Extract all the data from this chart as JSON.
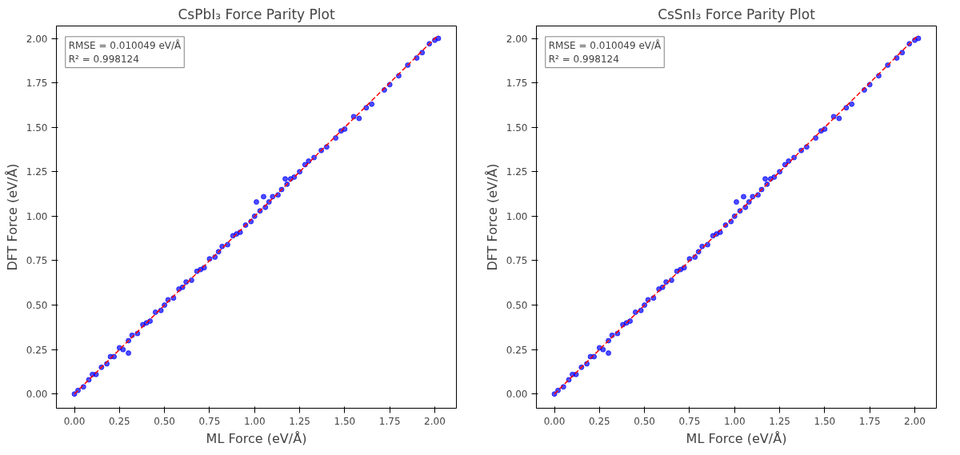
{
  "chart_data": [
    {
      "type": "scatter",
      "title": "CsPbI₃ Force Parity Plot",
      "xlabel": "ML Force (eV/Å)",
      "ylabel": "DFT Force (eV/Å)",
      "xlim": [
        -0.1,
        2.12
      ],
      "ylim": [
        -0.08,
        2.07
      ],
      "xticks": [
        {
          "value": 0,
          "label": "0.00"
        },
        0.25,
        {
          "value": 0.5,
          "label": "0.50"
        },
        0.75,
        {
          "value": 1,
          "label": "1.00"
        },
        1.25,
        {
          "value": 1.5,
          "label": "1.50"
        },
        1.75,
        {
          "value": 2,
          "label": "2.00"
        }
      ],
      "yticks": [
        {
          "value": 0,
          "label": "0.00"
        },
        0.25,
        {
          "value": 0.5,
          "label": "0.50"
        },
        0.75,
        {
          "value": 1,
          "label": "1.00"
        },
        1.25,
        {
          "value": 1.5,
          "label": "1.50"
        },
        1.75,
        {
          "value": 2,
          "label": "2.00"
        }
      ],
      "grid": false,
      "marker": "circle",
      "annotations": [
        "RMSE = 0.010049 eV/Å\nR² = 0.998124"
      ],
      "series": [
        {
          "color": "#0000ff",
          "x": [
            0.0,
            0.02,
            0.05,
            0.08,
            0.1,
            0.12,
            0.15,
            0.18,
            0.2,
            0.22,
            0.25,
            0.27,
            0.3,
            0.3,
            0.32,
            0.35,
            0.38,
            0.4,
            0.42,
            0.45,
            0.48,
            0.5,
            0.52,
            0.55,
            0.58,
            0.6,
            0.62,
            0.65,
            0.68,
            0.7,
            0.72,
            0.75,
            0.78,
            0.8,
            0.82,
            0.85,
            0.88,
            0.9,
            0.92,
            0.95,
            0.98,
            1.0,
            1.01,
            1.03,
            1.05,
            1.06,
            1.08,
            1.1,
            1.13,
            1.15,
            1.17,
            1.18,
            1.2,
            1.22,
            1.25,
            1.28,
            1.3,
            1.33,
            1.37,
            1.4,
            1.45,
            1.48,
            1.5,
            1.55,
            1.58,
            1.62,
            1.65,
            1.72,
            1.75,
            1.8,
            1.85,
            1.9,
            1.93,
            1.97,
            2.0,
            2.02
          ],
          "values": [
            0.0,
            0.02,
            0.04,
            0.08,
            0.11,
            0.11,
            0.15,
            0.17,
            0.21,
            0.21,
            0.26,
            0.25,
            0.3,
            0.23,
            0.33,
            0.34,
            0.39,
            0.4,
            0.41,
            0.46,
            0.47,
            0.5,
            0.53,
            0.54,
            0.59,
            0.6,
            0.63,
            0.64,
            0.69,
            0.7,
            0.71,
            0.76,
            0.77,
            0.8,
            0.83,
            0.84,
            0.89,
            0.9,
            0.91,
            0.95,
            0.97,
            1.0,
            1.08,
            1.03,
            1.11,
            1.05,
            1.08,
            1.11,
            1.12,
            1.15,
            1.21,
            1.18,
            1.21,
            1.22,
            1.25,
            1.29,
            1.31,
            1.33,
            1.37,
            1.39,
            1.44,
            1.48,
            1.49,
            1.56,
            1.55,
            1.61,
            1.63,
            1.71,
            1.74,
            1.79,
            1.85,
            1.89,
            1.92,
            1.97,
            1.99,
            2.0
          ]
        },
        {
          "type": "line",
          "color": "#ff0000",
          "line_style": "dashed",
          "marker": "none",
          "x": [
            0.0,
            2.02
          ],
          "values": [
            0.0,
            2.02
          ]
        }
      ]
    },
    {
      "type": "scatter",
      "title": "CsSnI₃ Force Parity Plot",
      "xlabel": "ML Force (eV/Å)",
      "ylabel": "DFT Force (eV/Å)",
      "xlim": [
        -0.1,
        2.12
      ],
      "ylim": [
        -0.08,
        2.07
      ],
      "xticks": [
        {
          "value": 0,
          "label": "0.00"
        },
        0.25,
        {
          "value": 0.5,
          "label": "0.50"
        },
        0.75,
        {
          "value": 1,
          "label": "1.00"
        },
        1.25,
        {
          "value": 1.5,
          "label": "1.50"
        },
        1.75,
        {
          "value": 2,
          "label": "2.00"
        }
      ],
      "yticks": [
        {
          "value": 0,
          "label": "0.00"
        },
        0.25,
        {
          "value": 0.5,
          "label": "0.50"
        },
        0.75,
        {
          "value": 1,
          "label": "1.00"
        },
        1.25,
        {
          "value": 1.5,
          "label": "1.50"
        },
        1.75,
        {
          "value": 2,
          "label": "2.00"
        }
      ],
      "grid": false,
      "marker": "circle",
      "annotations": [
        "RMSE = 0.010049 eV/Å\nR² = 0.998124"
      ],
      "series": [
        {
          "color": "#0000ff",
          "x": [
            0.0,
            0.02,
            0.05,
            0.08,
            0.1,
            0.12,
            0.15,
            0.18,
            0.2,
            0.22,
            0.25,
            0.27,
            0.3,
            0.3,
            0.32,
            0.35,
            0.38,
            0.4,
            0.42,
            0.45,
            0.48,
            0.5,
            0.52,
            0.55,
            0.58,
            0.6,
            0.62,
            0.65,
            0.68,
            0.7,
            0.72,
            0.75,
            0.78,
            0.8,
            0.82,
            0.85,
            0.88,
            0.9,
            0.92,
            0.95,
            0.98,
            1.0,
            1.01,
            1.03,
            1.05,
            1.06,
            1.08,
            1.1,
            1.13,
            1.15,
            1.17,
            1.18,
            1.2,
            1.22,
            1.25,
            1.28,
            1.3,
            1.33,
            1.37,
            1.4,
            1.45,
            1.48,
            1.5,
            1.55,
            1.58,
            1.62,
            1.65,
            1.72,
            1.75,
            1.8,
            1.85,
            1.9,
            1.93,
            1.97,
            2.0,
            2.02
          ],
          "values": [
            0.0,
            0.02,
            0.04,
            0.08,
            0.11,
            0.11,
            0.15,
            0.17,
            0.21,
            0.21,
            0.26,
            0.25,
            0.3,
            0.23,
            0.33,
            0.34,
            0.39,
            0.4,
            0.41,
            0.46,
            0.47,
            0.5,
            0.53,
            0.54,
            0.59,
            0.6,
            0.63,
            0.64,
            0.69,
            0.7,
            0.71,
            0.76,
            0.77,
            0.8,
            0.83,
            0.84,
            0.89,
            0.9,
            0.91,
            0.95,
            0.97,
            1.0,
            1.08,
            1.03,
            1.11,
            1.05,
            1.08,
            1.11,
            1.12,
            1.15,
            1.21,
            1.18,
            1.21,
            1.22,
            1.25,
            1.29,
            1.31,
            1.33,
            1.37,
            1.39,
            1.44,
            1.48,
            1.49,
            1.56,
            1.55,
            1.61,
            1.63,
            1.71,
            1.74,
            1.79,
            1.85,
            1.89,
            1.92,
            1.97,
            1.99,
            2.0
          ]
        },
        {
          "type": "line",
          "color": "#ff0000",
          "line_style": "dashed",
          "marker": "none",
          "x": [
            0.0,
            2.02
          ],
          "values": [
            0.0,
            2.02
          ]
        }
      ]
    }
  ]
}
